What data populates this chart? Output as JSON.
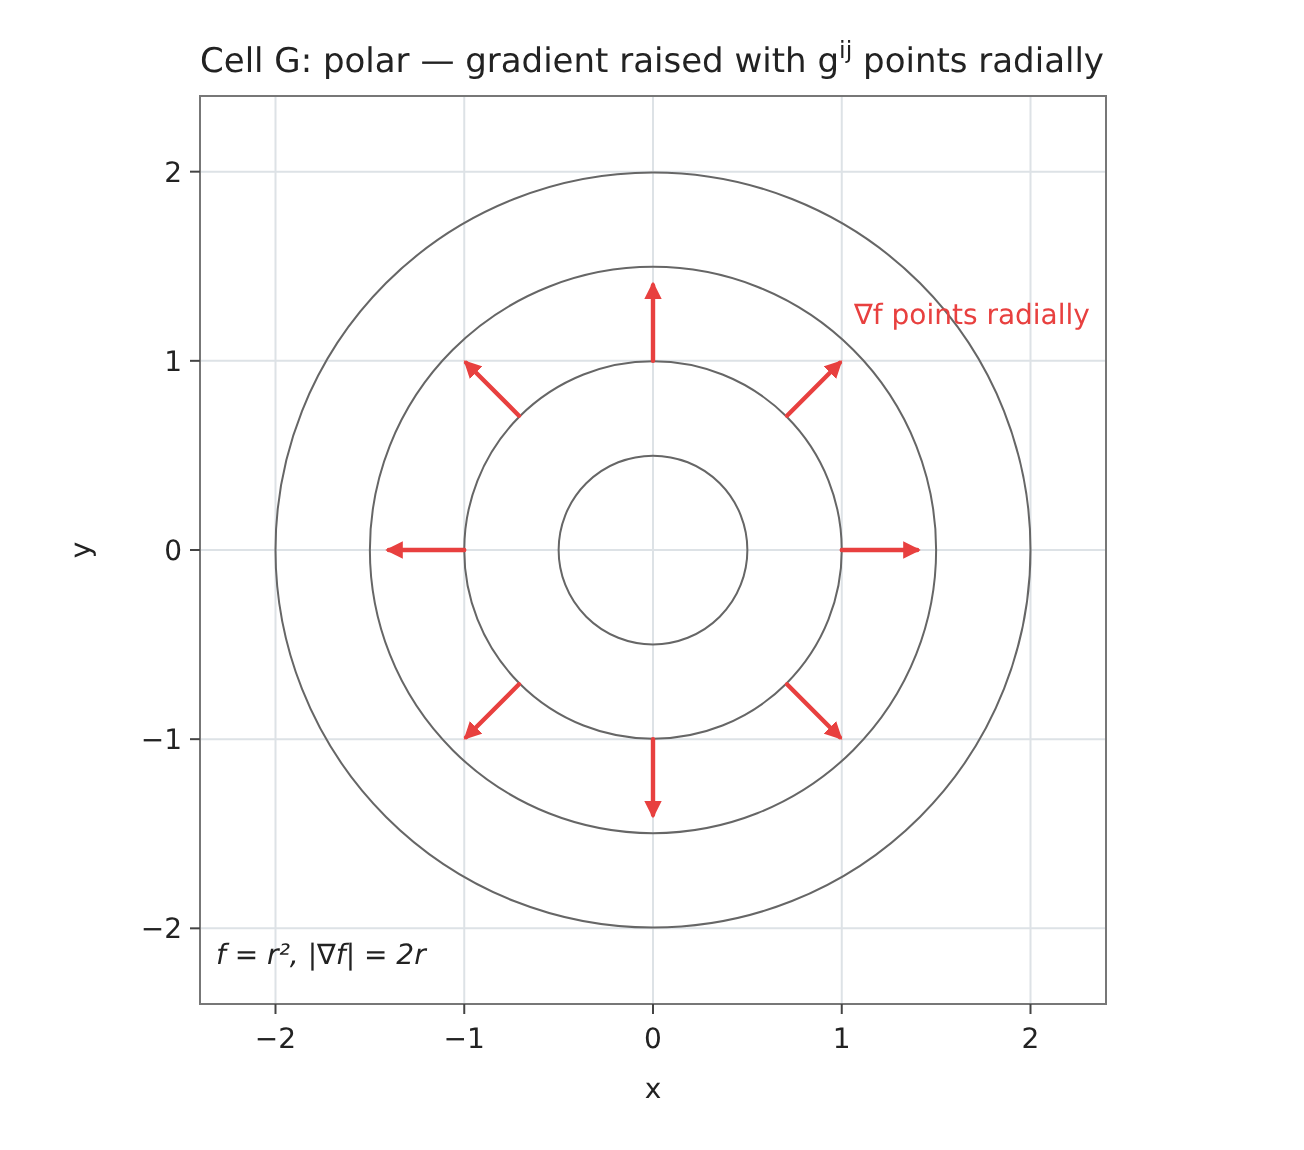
{
  "chart_data": {
    "type": "line",
    "title": "Cell G: polar — gradient raised with g$^{ij}$ points radially",
    "xlabel": "x",
    "ylabel": "y",
    "xlim": [
      -2.4,
      2.4
    ],
    "ylim": [
      -2.4,
      2.4
    ],
    "xticks": [
      {
        "value": -2,
        "label": "−2"
      },
      {
        "value": -1,
        "label": "−1"
      },
      0,
      1,
      2
    ],
    "yticks": [
      {
        "value": -2,
        "label": "−2"
      },
      {
        "value": -1,
        "label": "−1"
      },
      0,
      1,
      2
    ],
    "grid": true,
    "annotations": [
      "∇f points radially",
      "f = r²,  |∇f| = 2r"
    ],
    "series": [
      {
        "color": "#e8403f",
        "x": [
          1,
          1.4
        ],
        "values": [
          0,
          0
        ]
      },
      {
        "color": "#e8403f",
        "x": [
          0.71,
          0.99
        ],
        "values": [
          0.71,
          0.99
        ]
      },
      {
        "color": "#e8403f",
        "x": [
          0,
          0
        ],
        "values": [
          1,
          1.4
        ]
      },
      {
        "color": "#e8403f",
        "x": [
          -0.71,
          -0.99
        ],
        "values": [
          0.71,
          0.99
        ]
      },
      {
        "color": "#e8403f",
        "x": [
          -1,
          -1.4
        ],
        "values": [
          0,
          0
        ]
      },
      {
        "color": "#e8403f",
        "x": [
          -0.71,
          -0.99
        ],
        "values": [
          -0.71,
          -0.99
        ]
      },
      {
        "color": "#e8403f",
        "x": [
          0,
          0
        ],
        "values": [
          -1,
          -1.4
        ]
      },
      {
        "color": "#e8403f",
        "x": [
          0.71,
          0.99
        ],
        "values": [
          -0.71,
          -0.99
        ]
      }
    ]
  }
}
